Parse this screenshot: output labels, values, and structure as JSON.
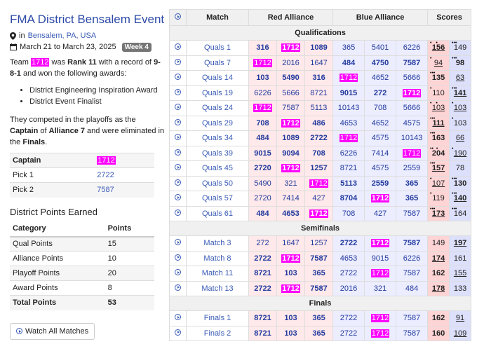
{
  "title": "FMA District Bensalem Event",
  "location_prefix": "in",
  "location": "Bensalem, PA, USA",
  "dates": "March 21 to March 23, 2025",
  "week": "Week 4",
  "team": "1712",
  "rank": "Rank 11",
  "record": "9-8-1",
  "awards": [
    "District Engineering Inspiration Award",
    "District Event Finalist"
  ],
  "playoff_role": "Captain",
  "playoff_alliance": "Alliance 7",
  "playoff_result": "Finals",
  "alliance_rows": [
    {
      "label": "Captain",
      "team": "1712"
    },
    {
      "label": "Pick 1",
      "team": "2722"
    },
    {
      "label": "Pick 2",
      "team": "7587"
    }
  ],
  "points_title": "District Points Earned",
  "points_headers": [
    "Category",
    "Points"
  ],
  "points": [
    {
      "category": "Qual Points",
      "points": "15"
    },
    {
      "category": "Alliance Points",
      "points": "10"
    },
    {
      "category": "Playoff Points",
      "points": "20"
    },
    {
      "category": "Award Points",
      "points": "8"
    },
    {
      "category": "Total Points",
      "points": "53"
    }
  ],
  "watch_label": "Watch All Matches",
  "table_headers": [
    "Match",
    "Red Alliance",
    "Blue Alliance",
    "Scores"
  ],
  "sections": [
    {
      "name": "Qualifications",
      "matches": [
        {
          "name": "Quals 1",
          "red": [
            "316",
            "1712",
            "1089"
          ],
          "blue": [
            "365",
            "5401",
            "6226"
          ],
          "rs": "156",
          "bs": "149",
          "winner": "red",
          "rdots": "•   •",
          "bdots": "•••"
        },
        {
          "name": "Quals 7",
          "red": [
            "1712",
            "2016",
            "1647"
          ],
          "blue": [
            "484",
            "4750",
            "7587"
          ],
          "rs": "94",
          "bs": "98",
          "winner": "blue",
          "rdots": "•",
          "bdots": "•••"
        },
        {
          "name": "Quals 14",
          "red": [
            "103",
            "5490",
            "316"
          ],
          "blue": [
            "1712",
            "4652",
            "5666"
          ],
          "rs": "135",
          "bs": "63",
          "winner": "red",
          "rdots": "•••",
          "bdots": ""
        },
        {
          "name": "Quals 19",
          "red": [
            "6226",
            "5666",
            "8721"
          ],
          "blue": [
            "9015",
            "272",
            "1712"
          ],
          "rs": "110",
          "bs": "141",
          "winner": "blue",
          "rdots": "•",
          "bdots": "•••"
        },
        {
          "name": "Quals 24",
          "red": [
            "1712",
            "7587",
            "5113"
          ],
          "blue": [
            "10143",
            "708",
            "5666"
          ],
          "rs": "103",
          "bs": "103",
          "winner": "tie",
          "rdots": "•   •",
          "bdots": "•"
        },
        {
          "name": "Quals 29",
          "red": [
            "708",
            "1712",
            "486"
          ],
          "blue": [
            "4653",
            "4652",
            "4575"
          ],
          "rs": "111",
          "bs": "103",
          "winner": "red",
          "rdots": "•••",
          "bdots": "•"
        },
        {
          "name": "Quals 34",
          "red": [
            "484",
            "1089",
            "2722"
          ],
          "blue": [
            "1712",
            "4575",
            "10143"
          ],
          "rs": "163",
          "bs": "66",
          "winner": "red",
          "rdots": "•••",
          "bdots": ""
        },
        {
          "name": "Quals 39",
          "red": [
            "9015",
            "9094",
            "708"
          ],
          "blue": [
            "6226",
            "7414",
            "1712"
          ],
          "rs": "204",
          "bs": "190",
          "winner": "red",
          "rdots": "••  •",
          "bdots": "•"
        },
        {
          "name": "Quals 45",
          "red": [
            "2720",
            "1712",
            "1257"
          ],
          "blue": [
            "8721",
            "4575",
            "2559"
          ],
          "rs": "157",
          "bs": "78",
          "winner": "red",
          "rdots": "•••",
          "bdots": ""
        },
        {
          "name": "Quals 50",
          "red": [
            "5490",
            "321",
            "1712"
          ],
          "blue": [
            "5113",
            "2559",
            "365"
          ],
          "rs": "107",
          "bs": "130",
          "winner": "blue",
          "rdots": "•",
          "bdots": "•••"
        },
        {
          "name": "Quals 57",
          "red": [
            "2720",
            "7414",
            "427"
          ],
          "blue": [
            "8704",
            "1712",
            "365"
          ],
          "rs": "119",
          "bs": "140",
          "winner": "blue",
          "rdots": "•",
          "bdots": "•••"
        },
        {
          "name": "Quals 61",
          "red": [
            "484",
            "4653",
            "1712"
          ],
          "blue": [
            "708",
            "427",
            "7587"
          ],
          "rs": "173",
          "bs": "164",
          "winner": "red",
          "rdots": "•••",
          "bdots": "•••"
        }
      ]
    },
    {
      "name": "Semifinals",
      "matches": [
        {
          "name": "Match 3",
          "red": [
            "272",
            "1647",
            "1257"
          ],
          "blue": [
            "2722",
            "1712",
            "7587"
          ],
          "rs": "149",
          "bs": "197",
          "winner": "blue",
          "rdots": "",
          "bdots": ""
        },
        {
          "name": "Match 8",
          "red": [
            "2722",
            "1712",
            "7587"
          ],
          "blue": [
            "4653",
            "9015",
            "6226"
          ],
          "rs": "174",
          "bs": "161",
          "winner": "red",
          "rdots": "",
          "bdots": ""
        },
        {
          "name": "Match 11",
          "red": [
            "8721",
            "103",
            "365"
          ],
          "blue": [
            "2722",
            "1712",
            "7587"
          ],
          "rs": "162",
          "bs": "155",
          "winner": "red",
          "rdots": "",
          "bdots": ""
        },
        {
          "name": "Match 13",
          "red": [
            "2722",
            "1712",
            "7587"
          ],
          "blue": [
            "2016",
            "321",
            "484"
          ],
          "rs": "178",
          "bs": "133",
          "winner": "red",
          "rdots": "",
          "bdots": ""
        }
      ]
    },
    {
      "name": "Finals",
      "matches": [
        {
          "name": "Finals 1",
          "red": [
            "8721",
            "103",
            "365"
          ],
          "blue": [
            "2722",
            "1712",
            "7587"
          ],
          "rs": "162",
          "bs": "91",
          "winner": "red",
          "rdots": "",
          "bdots": ""
        },
        {
          "name": "Finals 2",
          "red": [
            "8721",
            "103",
            "365"
          ],
          "blue": [
            "2722",
            "1712",
            "7587"
          ],
          "rs": "160",
          "bs": "109",
          "winner": "red",
          "rdots": "",
          "bdots": ""
        }
      ]
    }
  ],
  "colors": {
    "highlight": "#ff00ff",
    "red_bg": "#ffe9ea",
    "blue_bg": "#ecedff",
    "title": "#2d4aa8"
  }
}
